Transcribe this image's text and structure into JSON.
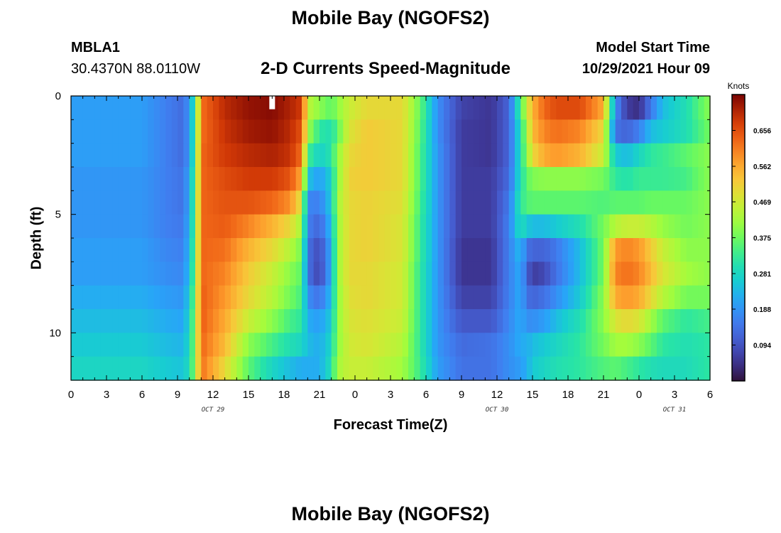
{
  "header": {
    "title": "Mobile Bay (NGOFS2)",
    "station_id": "MBLA1",
    "station_coords": "30.4370N  88.0110W",
    "subtitle": "2-D Currents Speed-Magnitude",
    "model_start_label": "Model Start Time",
    "model_start_value": "10/29/2021 Hour 09"
  },
  "footer": {
    "title": "Mobile Bay (NGOFS2)"
  },
  "chart_data": {
    "type": "heatmap",
    "xlabel": "Forecast Time(Z)",
    "ylabel": "Depth (ft)",
    "x_range_hours": [
      0,
      54
    ],
    "y_range": [
      0,
      12
    ],
    "y_inverted": true,
    "x_tick_labels": [
      "0",
      "3",
      "6",
      "9",
      "12",
      "15",
      "18",
      "21",
      "0",
      "3",
      "6",
      "9",
      "12",
      "15",
      "18",
      "21",
      "0",
      "3",
      "6"
    ],
    "y_ticks": [
      0,
      5,
      10
    ],
    "day_labels": [
      {
        "label": "OCT 29",
        "hour": 12
      },
      {
        "label": "OCT 30",
        "hour": 36
      },
      {
        "label": "OCT 31",
        "hour": 51
      }
    ],
    "colorbar": {
      "unit": "Knots",
      "min": 0.0,
      "max": 0.75,
      "tick_labels": [
        "0.656",
        "0.562",
        "0.469",
        "0.375",
        "0.281",
        "0.188",
        "0.094"
      ],
      "tick_values": [
        0.656,
        0.562,
        0.469,
        0.375,
        0.281,
        0.188,
        0.094
      ],
      "colormap": "turbo"
    },
    "depth_levels": [
      0.5,
      1.5,
      2.5,
      3.5,
      4.5,
      5.5,
      6.5,
      7.5,
      8.5,
      9.5,
      10.5,
      11.5
    ],
    "anchor_hours": [
      0,
      6,
      8,
      9.5,
      10,
      10.5,
      11,
      13,
      15,
      17,
      18.5,
      19.5,
      20,
      21,
      22,
      22.5,
      23.5,
      25,
      28,
      29.5,
      31,
      33,
      35.5,
      37,
      38,
      38.5,
      39,
      40,
      41,
      43,
      45,
      46,
      47,
      48,
      49,
      50,
      52,
      54
    ],
    "values": [
      [
        0.2,
        0.2,
        0.16,
        0.13,
        0.2,
        0.32,
        0.62,
        0.7,
        0.73,
        0.74,
        0.71,
        0.68,
        0.45,
        0.4,
        0.36,
        0.4,
        0.46,
        0.5,
        0.5,
        0.37,
        0.18,
        0.07,
        0.05,
        0.12,
        0.34,
        0.46,
        0.55,
        0.63,
        0.66,
        0.66,
        0.56,
        0.18,
        0.06,
        0.04,
        0.15,
        0.24,
        0.3,
        0.4
      ],
      [
        0.2,
        0.2,
        0.16,
        0.13,
        0.2,
        0.33,
        0.62,
        0.69,
        0.72,
        0.73,
        0.7,
        0.65,
        0.42,
        0.32,
        0.3,
        0.36,
        0.48,
        0.52,
        0.5,
        0.36,
        0.18,
        0.06,
        0.05,
        0.12,
        0.3,
        0.42,
        0.54,
        0.6,
        0.62,
        0.6,
        0.5,
        0.14,
        0.12,
        0.16,
        0.24,
        0.26,
        0.3,
        0.38
      ],
      [
        0.2,
        0.2,
        0.16,
        0.13,
        0.2,
        0.34,
        0.63,
        0.68,
        0.7,
        0.71,
        0.69,
        0.62,
        0.34,
        0.27,
        0.31,
        0.4,
        0.5,
        0.52,
        0.5,
        0.35,
        0.19,
        0.06,
        0.05,
        0.12,
        0.3,
        0.4,
        0.5,
        0.56,
        0.58,
        0.55,
        0.46,
        0.26,
        0.24,
        0.28,
        0.32,
        0.33,
        0.36,
        0.4
      ],
      [
        0.19,
        0.19,
        0.16,
        0.14,
        0.22,
        0.35,
        0.63,
        0.66,
        0.68,
        0.68,
        0.65,
        0.56,
        0.25,
        0.2,
        0.27,
        0.4,
        0.51,
        0.52,
        0.5,
        0.35,
        0.19,
        0.06,
        0.06,
        0.13,
        0.3,
        0.36,
        0.39,
        0.4,
        0.4,
        0.4,
        0.38,
        0.32,
        0.31,
        0.33,
        0.33,
        0.33,
        0.34,
        0.4
      ],
      [
        0.19,
        0.19,
        0.16,
        0.14,
        0.22,
        0.36,
        0.63,
        0.65,
        0.65,
        0.63,
        0.59,
        0.48,
        0.17,
        0.16,
        0.26,
        0.42,
        0.5,
        0.51,
        0.49,
        0.34,
        0.19,
        0.06,
        0.06,
        0.15,
        0.32,
        0.35,
        0.36,
        0.36,
        0.36,
        0.36,
        0.35,
        0.36,
        0.36,
        0.36,
        0.37,
        0.37,
        0.37,
        0.4
      ],
      [
        0.19,
        0.19,
        0.16,
        0.15,
        0.23,
        0.36,
        0.63,
        0.64,
        0.6,
        0.55,
        0.5,
        0.42,
        0.16,
        0.12,
        0.24,
        0.41,
        0.5,
        0.51,
        0.48,
        0.33,
        0.19,
        0.06,
        0.06,
        0.16,
        0.3,
        0.26,
        0.24,
        0.24,
        0.26,
        0.3,
        0.38,
        0.44,
        0.46,
        0.46,
        0.44,
        0.41,
        0.38,
        0.4
      ],
      [
        0.2,
        0.2,
        0.17,
        0.16,
        0.24,
        0.37,
        0.63,
        0.62,
        0.55,
        0.5,
        0.44,
        0.38,
        0.14,
        0.08,
        0.22,
        0.41,
        0.5,
        0.51,
        0.48,
        0.33,
        0.19,
        0.05,
        0.05,
        0.16,
        0.24,
        0.14,
        0.12,
        0.12,
        0.15,
        0.24,
        0.38,
        0.58,
        0.6,
        0.58,
        0.52,
        0.46,
        0.4,
        0.4
      ],
      [
        0.2,
        0.2,
        0.18,
        0.17,
        0.25,
        0.38,
        0.63,
        0.6,
        0.52,
        0.46,
        0.4,
        0.36,
        0.14,
        0.07,
        0.22,
        0.41,
        0.5,
        0.5,
        0.47,
        0.32,
        0.19,
        0.05,
        0.05,
        0.16,
        0.22,
        0.12,
        0.06,
        0.08,
        0.14,
        0.24,
        0.38,
        0.6,
        0.62,
        0.6,
        0.54,
        0.48,
        0.42,
        0.4
      ],
      [
        0.22,
        0.22,
        0.2,
        0.19,
        0.27,
        0.39,
        0.64,
        0.58,
        0.5,
        0.44,
        0.38,
        0.34,
        0.18,
        0.14,
        0.24,
        0.4,
        0.49,
        0.5,
        0.47,
        0.32,
        0.19,
        0.07,
        0.07,
        0.16,
        0.22,
        0.14,
        0.12,
        0.14,
        0.18,
        0.26,
        0.4,
        0.56,
        0.58,
        0.56,
        0.5,
        0.44,
        0.38,
        0.38
      ],
      [
        0.24,
        0.24,
        0.22,
        0.21,
        0.28,
        0.4,
        0.64,
        0.56,
        0.46,
        0.4,
        0.34,
        0.32,
        0.22,
        0.2,
        0.26,
        0.4,
        0.48,
        0.49,
        0.46,
        0.32,
        0.19,
        0.1,
        0.1,
        0.17,
        0.22,
        0.18,
        0.18,
        0.2,
        0.24,
        0.3,
        0.4,
        0.48,
        0.5,
        0.48,
        0.42,
        0.36,
        0.32,
        0.34
      ],
      [
        0.26,
        0.26,
        0.24,
        0.23,
        0.29,
        0.4,
        0.63,
        0.54,
        0.4,
        0.34,
        0.3,
        0.28,
        0.24,
        0.22,
        0.28,
        0.4,
        0.47,
        0.48,
        0.44,
        0.32,
        0.19,
        0.13,
        0.14,
        0.18,
        0.22,
        0.22,
        0.24,
        0.26,
        0.28,
        0.32,
        0.38,
        0.42,
        0.42,
        0.4,
        0.36,
        0.32,
        0.3,
        0.32
      ],
      [
        0.28,
        0.28,
        0.26,
        0.25,
        0.3,
        0.4,
        0.62,
        0.5,
        0.36,
        0.28,
        0.24,
        0.22,
        0.22,
        0.22,
        0.3,
        0.42,
        0.46,
        0.46,
        0.42,
        0.33,
        0.2,
        0.14,
        0.14,
        0.18,
        0.2,
        0.22,
        0.26,
        0.28,
        0.3,
        0.32,
        0.35,
        0.36,
        0.34,
        0.32,
        0.3,
        0.29,
        0.29,
        0.32
      ]
    ],
    "missing_cells": [
      {
        "hour": 17,
        "depth": 0.5
      }
    ]
  }
}
